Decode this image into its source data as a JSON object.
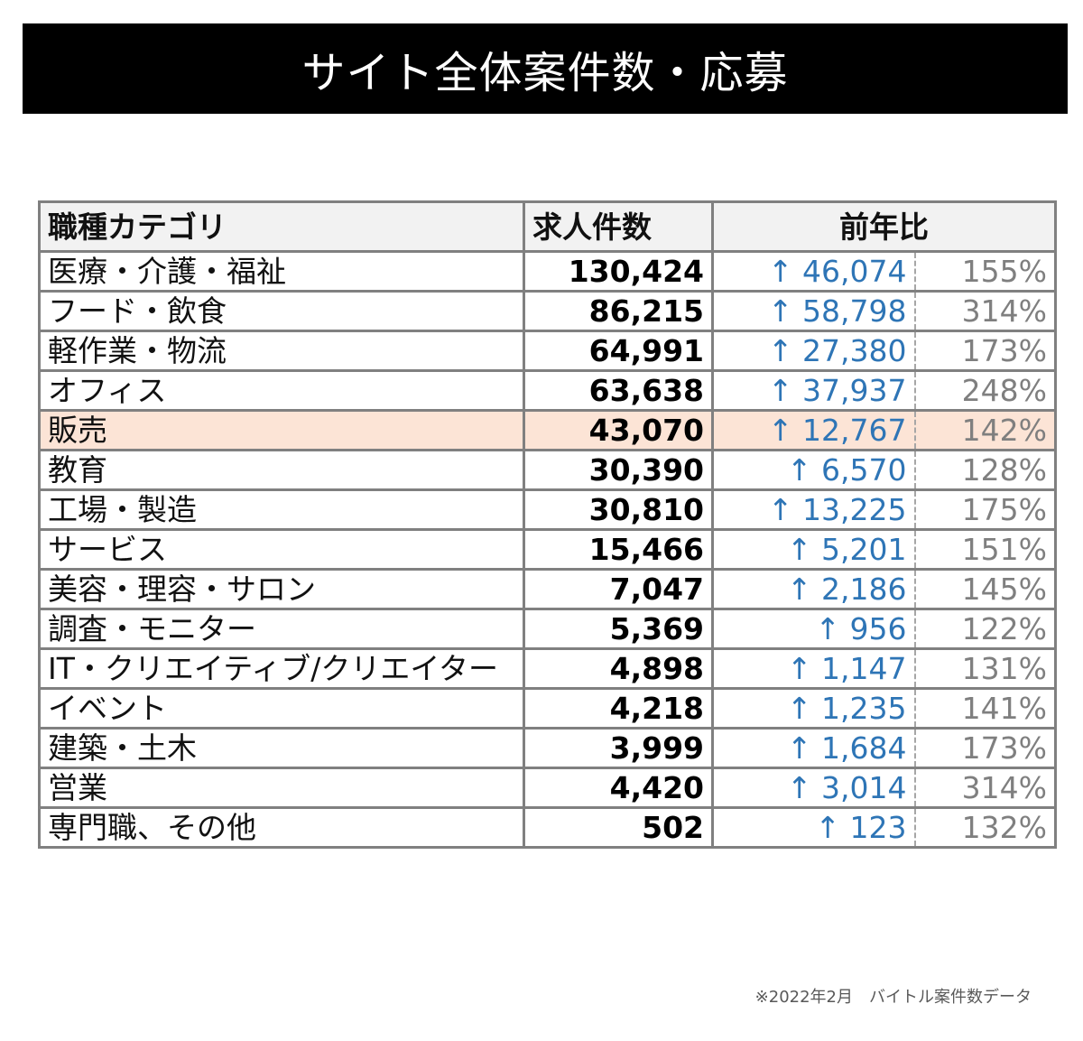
{
  "title": "サイト全体案件数・応募",
  "table": {
    "headers": {
      "category": "職種カテゴリ",
      "count": "求人件数",
      "yoy": "前年比"
    },
    "arrow_glyph": "↑",
    "rows": [
      {
        "category": "医療・介護・福祉",
        "count": "130,424",
        "diff": "↑ 46,074",
        "pct": "155%"
      },
      {
        "category": "フード・飲食",
        "count": "86,215",
        "diff": "↑ 58,798",
        "pct": "314%"
      },
      {
        "category": "軽作業・物流",
        "count": "64,991",
        "diff": "↑ 27,380",
        "pct": "173%"
      },
      {
        "category": "オフィス",
        "count": "63,638",
        "diff": "↑ 37,937",
        "pct": "248%"
      },
      {
        "category": "販売",
        "count": "43,070",
        "diff": "↑ 12,767",
        "pct": "142%",
        "highlighted": true
      },
      {
        "category": "教育",
        "count": "30,390",
        "diff": "↑ 6,570",
        "pct": "128%"
      },
      {
        "category": "工場・製造",
        "count": "30,810",
        "diff": "↑ 13,225",
        "pct": "175%"
      },
      {
        "category": "サービス",
        "count": "15,466",
        "diff": "↑ 5,201",
        "pct": "151%"
      },
      {
        "category": "美容・理容・サロン",
        "count": "7,047",
        "diff": "↑ 2,186",
        "pct": "145%"
      },
      {
        "category": "調査・モニター",
        "count": "5,369",
        "diff": "↑ 956",
        "pct": "122%"
      },
      {
        "category": "IT・クリエイティブ/クリエイター",
        "count": "4,898",
        "diff": "↑ 1,147",
        "pct": "131%"
      },
      {
        "category": "イベント",
        "count": "4,218",
        "diff": "↑ 1,235",
        "pct": "141%"
      },
      {
        "category": "建築・土木",
        "count": "3,999",
        "diff": "↑ 1,684",
        "pct": "173%"
      },
      {
        "category": "営業",
        "count": "4,420",
        "diff": "↑ 3,014",
        "pct": "314%"
      },
      {
        "category": "専門職、その他",
        "count": "502",
        "diff": "↑ 123",
        "pct": "132%"
      }
    ]
  },
  "footnote": "※2022年2月　バイトル案件数データ",
  "colors": {
    "title_bg": "#000000",
    "header_bg": "#f2f2f2",
    "highlight_row": "#fce4d6",
    "increase_blue": "#2e75b6",
    "percent_gray": "#7f7f7f",
    "border_gray": "#808080"
  },
  "chart_data": {
    "type": "table",
    "title": "サイト全体案件数・応募",
    "columns": [
      "職種カテゴリ",
      "求人件数",
      "前年比(増加数)",
      "前年比(%)"
    ],
    "categories": [
      "医療・介護・福祉",
      "フード・飲食",
      "軽作業・物流",
      "オフィス",
      "販売",
      "教育",
      "工場・製造",
      "サービス",
      "美容・理容・サロン",
      "調査・モニター",
      "IT・クリエイティブ/クリエイター",
      "イベント",
      "建築・土木",
      "営業",
      "専門職、その他"
    ],
    "series": [
      {
        "name": "求人件数",
        "values": [
          130424,
          86215,
          64991,
          63638,
          43070,
          30390,
          30810,
          15466,
          7047,
          5369,
          4898,
          4218,
          3999,
          4420,
          502
        ]
      },
      {
        "name": "前年比増加数",
        "values": [
          46074,
          58798,
          27380,
          37937,
          12767,
          6570,
          13225,
          5201,
          2186,
          956,
          1147,
          1235,
          1684,
          3014,
          123
        ]
      },
      {
        "name": "前年比(%)",
        "values": [
          155,
          314,
          173,
          248,
          142,
          128,
          175,
          151,
          145,
          122,
          131,
          141,
          173,
          314,
          132
        ]
      }
    ],
    "highlighted_category": "販売",
    "note": "※2022年2月　バイトル案件数データ"
  }
}
